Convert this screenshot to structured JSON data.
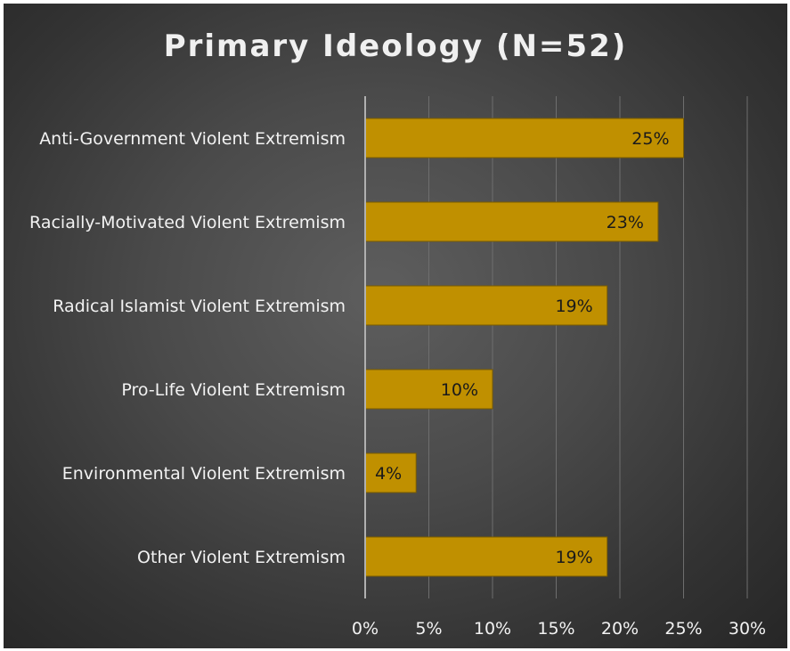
{
  "chart_data": {
    "type": "bar",
    "orientation": "horizontal",
    "title": "Primary Ideology (N=52)",
    "categories": [
      "Anti-Government Violent Extremism",
      "Racially-Motivated Violent Extremism",
      "Radical Islamist Violent Extremism",
      "Pro-Life Violent Extremism",
      "Environmental Violent Extremism",
      "Other Violent Extremism"
    ],
    "values": [
      25,
      23,
      19,
      10,
      4,
      19
    ],
    "data_labels": [
      "25%",
      "23%",
      "19%",
      "10%",
      "4%",
      "19%"
    ],
    "xlim": [
      0,
      30
    ],
    "x_ticks": [
      0,
      5,
      10,
      15,
      20,
      25,
      30
    ],
    "x_tick_labels": [
      "0%",
      "5%",
      "10%",
      "15%",
      "20%",
      "25%",
      "30%"
    ],
    "grid": "vertical",
    "legend": "none",
    "colors": {
      "bar": "#c09000",
      "bar_edge": "#7a5c00",
      "gridline": "#6e6e6e",
      "axis": "#b0b0b0",
      "text": "#f2f2f2",
      "data_label": "#1a1a1a"
    }
  }
}
